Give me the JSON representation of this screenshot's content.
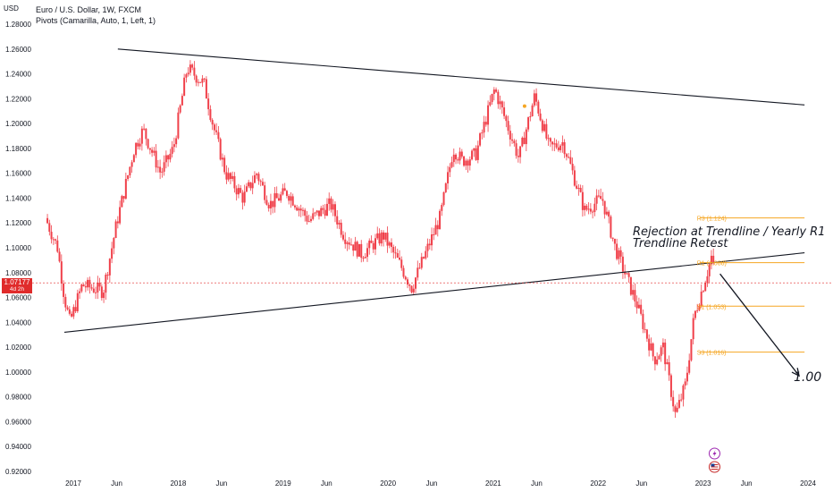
{
  "header": {
    "currency": "USD",
    "title": "Euro / U.S. Dollar, 1W, FXCM",
    "indicator": "Pivots (Camarilla, Auto, 1, Left, 1)"
  },
  "price_tag": {
    "price": "1.07177",
    "countdown": "4d 2h",
    "color": "#e02b2b"
  },
  "annotations": {
    "line1": "Rejection at Trendline / Yearly R1",
    "line2": "Trendline Retest",
    "target": "1.00"
  },
  "chart_data": {
    "type": "candlestick",
    "title": "Euro / U.S. Dollar, 1W, FXCM",
    "xlabel": "",
    "ylabel": "",
    "x_tick_labels": [
      "2017",
      "Jun",
      "2018",
      "Jun",
      "2019",
      "Jun",
      "2020",
      "Jun",
      "2021",
      "Jun",
      "2022",
      "Jun",
      "2023",
      "Jun",
      "2024"
    ],
    "y_tick_labels": [
      "1.28000",
      "1.26000",
      "1.24000",
      "1.22000",
      "1.20000",
      "1.18000",
      "1.16000",
      "1.14000",
      "1.12000",
      "1.10000",
      "1.08000",
      "1.06000",
      "1.04000",
      "1.02000",
      "1.00000",
      "0.98000",
      "0.96000",
      "0.94000",
      "0.92000"
    ],
    "ylim": [
      0.915,
      1.285
    ],
    "last_price": 1.07177,
    "candle_color": "#f0404a",
    "price_path": [
      [
        "2016-10-03",
        1.12
      ],
      [
        "2016-11-07",
        1.1
      ],
      [
        "2016-12-01",
        1.06
      ],
      [
        "2016-12-20",
        1.04
      ],
      [
        "2017-02-01",
        1.07
      ],
      [
        "2017-04-15",
        1.065
      ],
      [
        "2017-06-01",
        1.12
      ],
      [
        "2017-08-01",
        1.18
      ],
      [
        "2017-09-01",
        1.195
      ],
      [
        "2017-11-01",
        1.16
      ],
      [
        "2017-12-15",
        1.18
      ],
      [
        "2018-02-01",
        1.245
      ],
      [
        "2018-04-01",
        1.232
      ],
      [
        "2018-05-01",
        1.2
      ],
      [
        "2018-06-15",
        1.16
      ],
      [
        "2018-08-15",
        1.14
      ],
      [
        "2018-10-01",
        1.16
      ],
      [
        "2018-11-15",
        1.135
      ],
      [
        "2019-01-15",
        1.145
      ],
      [
        "2019-04-01",
        1.122
      ],
      [
        "2019-06-15",
        1.135
      ],
      [
        "2019-08-01",
        1.11
      ],
      [
        "2019-10-01",
        1.095
      ],
      [
        "2019-12-15",
        1.11
      ],
      [
        "2020-02-15",
        1.085
      ],
      [
        "2020-03-23",
        1.068
      ],
      [
        "2020-05-01",
        1.09
      ],
      [
        "2020-07-01",
        1.125
      ],
      [
        "2020-08-15",
        1.18
      ],
      [
        "2020-09-15",
        1.17
      ],
      [
        "2020-11-01",
        1.175
      ],
      [
        "2021-01-06",
        1.228
      ],
      [
        "2021-03-31",
        1.172
      ],
      [
        "2021-05-25",
        1.222
      ],
      [
        "2021-07-15",
        1.18
      ],
      [
        "2021-09-01",
        1.185
      ],
      [
        "2021-11-15",
        1.13
      ],
      [
        "2022-01-15",
        1.14
      ],
      [
        "2022-03-01",
        1.1
      ],
      [
        "2022-05-15",
        1.055
      ],
      [
        "2022-07-15",
        1.01
      ],
      [
        "2022-08-15",
        1.02
      ],
      [
        "2022-09-27",
        0.965
      ],
      [
        "2022-11-01",
        0.99
      ],
      [
        "2022-12-01",
        1.045
      ],
      [
        "2023-01-15",
        1.08
      ],
      [
        "2023-02-02",
        1.095
      ],
      [
        "2023-02-10",
        1.072
      ]
    ],
    "trendlines": [
      {
        "name": "upper",
        "points": [
          [
            "2017-06-05",
            1.26
          ],
          [
            "2023-12-20",
            1.215
          ]
        ]
      },
      {
        "name": "lower",
        "points": [
          [
            "2016-12-01",
            1.032
          ],
          [
            "2023-12-20",
            1.096
          ]
        ]
      }
    ],
    "pivots": [
      {
        "label": "R3 (1.124)",
        "value": 1.124
      },
      {
        "label": "R1 (1.088)",
        "value": 1.088
      },
      {
        "label": "S1 (1.053)",
        "value": 1.053
      },
      {
        "label": "S3 (1.016)",
        "value": 1.016
      }
    ],
    "projection_arrow": {
      "from": [
        "2023-03-01",
        1.079
      ],
      "to": [
        "2023-12-01",
        0.997
      ]
    },
    "grid": false,
    "legend": "top-left"
  }
}
